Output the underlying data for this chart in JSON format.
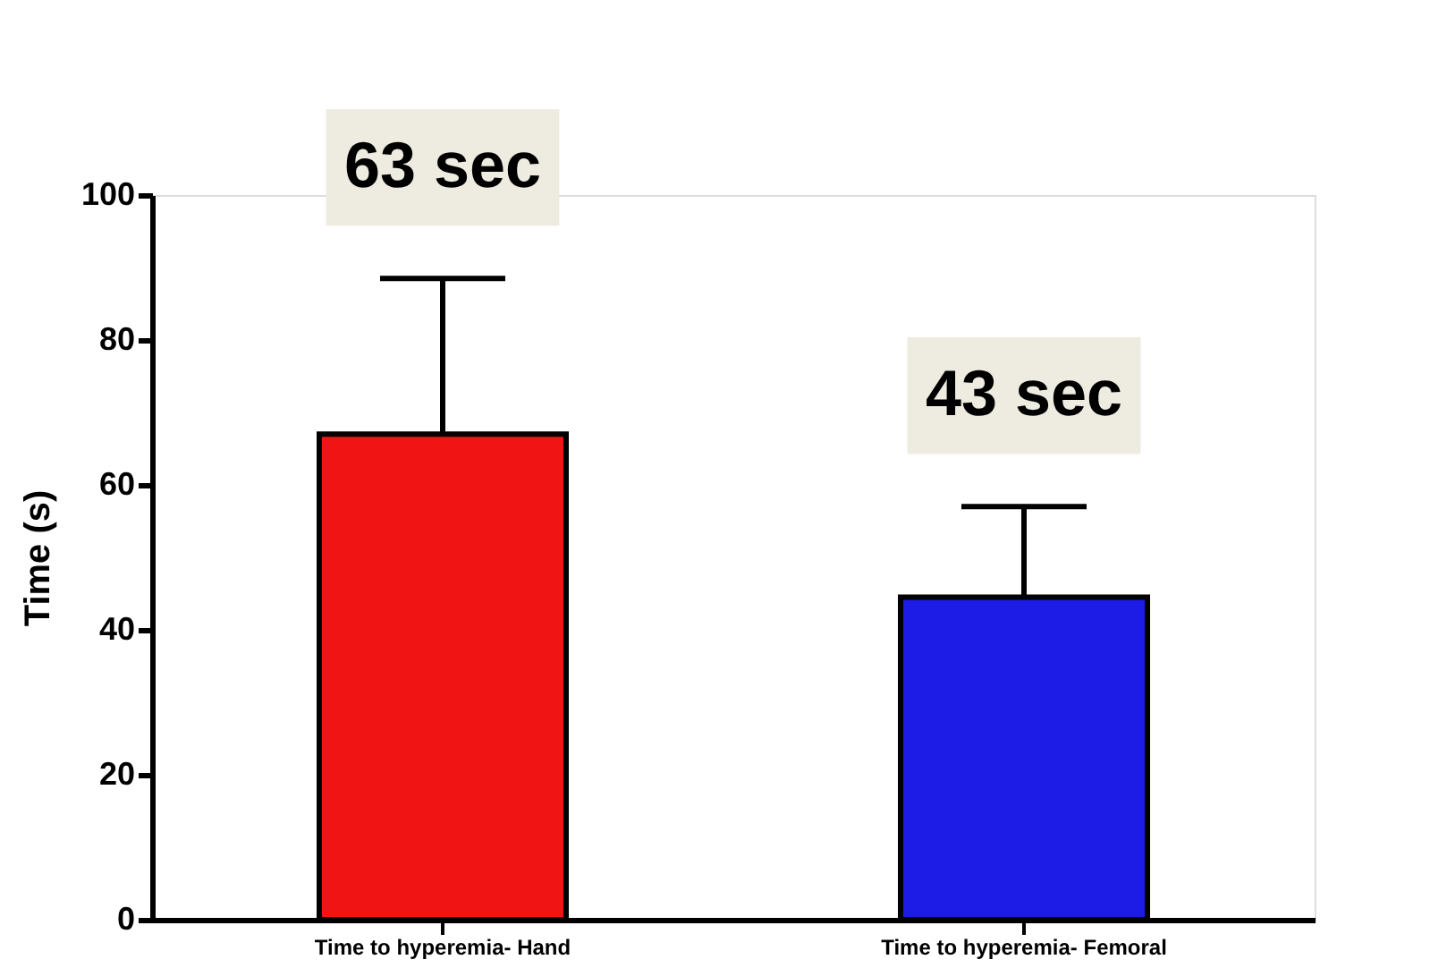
{
  "chart_data": {
    "type": "bar",
    "ylabel": "Time (s)",
    "categories": [
      "Time to hyperemia- Hand",
      "Time to hyperemia- Femoral"
    ],
    "values": [
      67,
      44.5
    ],
    "colors": [
      "#f01414",
      "#1c1ce6"
    ],
    "errors": [
      [
        67,
        88.5
      ],
      [
        44.5,
        57
      ]
    ],
    "ylim": [
      0,
      100
    ],
    "yticks": [
      0,
      20,
      40,
      60,
      80,
      100
    ],
    "grid": false,
    "annotations": [
      "63 sec",
      "43 sec"
    ]
  }
}
